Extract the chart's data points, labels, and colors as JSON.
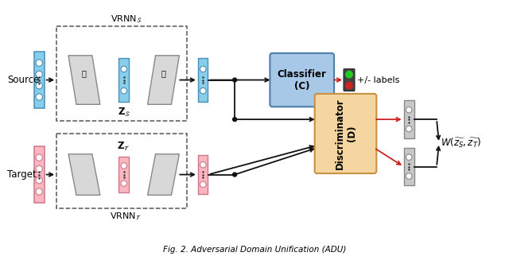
{
  "bg_color": "#ffffff",
  "source_label": "Source",
  "target_label": "Target",
  "vrnn_s_label": "VRNN$_\\mathcal{S}$",
  "vrnn_t_label": "VRNN$_\\mathcal{T}$",
  "zs_label": "$\\mathbf{z}_\\mathcal{S}$",
  "zt_label": "$\\mathbf{z}_\\mathcal{T}$",
  "classifier_label": "Classifier\n(C)",
  "discriminator_label": "Discriminator\n(D)",
  "w_label": "$W(\\widetilde{z_S}, \\widetilde{z_T})$",
  "plus_minus_label": "+/- labels",
  "caption": "Fig. 2. Adversarial Domain Unification (ADU)",
  "blue_col": "#87CEEB",
  "blue_border": "#4a8db5",
  "pink_col": "#FFB6C1",
  "pink_border": "#cc7788",
  "gray_col": "#c8c8c8",
  "gray_border": "#888888",
  "gray_dark_col": "#b0b0b0",
  "gray_dark_border": "#707070",
  "classifier_bg": "#a8c8e8",
  "classifier_border": "#4a80a8",
  "discriminator_bg": "#f5d5a0",
  "discriminator_border": "#c89040",
  "arrow_black": "#111111",
  "arrow_red": "#cc2222",
  "dot_black": "#111111"
}
